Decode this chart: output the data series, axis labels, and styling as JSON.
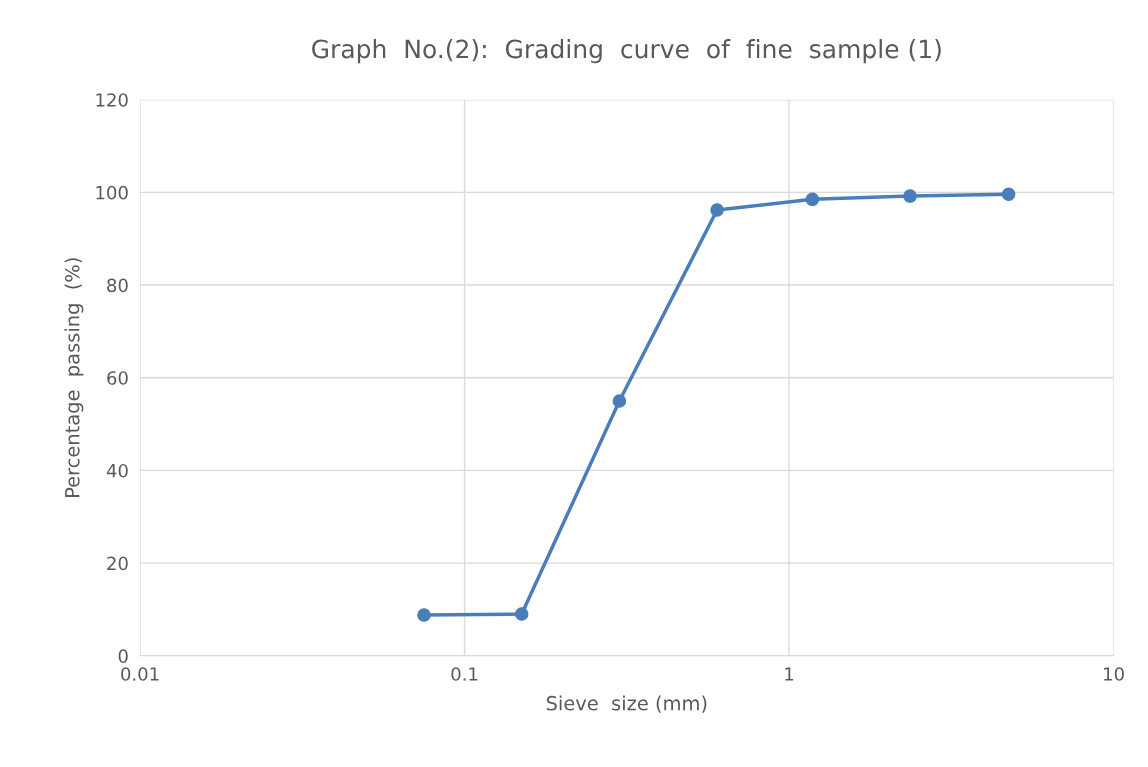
{
  "chart_data": {
    "type": "line",
    "title": "Graph  No.(2):  Grading  curve  of  fine  sample (1)",
    "xlabel": "Sieve  size (mm)",
    "ylabel": "Percentage  passing  (%)",
    "x": [
      0.075,
      0.15,
      0.3,
      0.6,
      1.18,
      2.36,
      4.75
    ],
    "series": [
      {
        "color": "#4a7ebb",
        "values": [
          8.8,
          9,
          55,
          96.2,
          98.5,
          99.2,
          99.6
        ]
      }
    ],
    "log": "x",
    "xlim": [
      0.01,
      10
    ],
    "xticks": [
      0.01,
      0.1,
      1,
      10
    ],
    "ylim": [
      0,
      120
    ],
    "yticks": [
      0,
      20,
      40,
      60,
      80,
      100,
      120
    ],
    "grid": true,
    "marker": "circle",
    "line_style": "solid"
  }
}
